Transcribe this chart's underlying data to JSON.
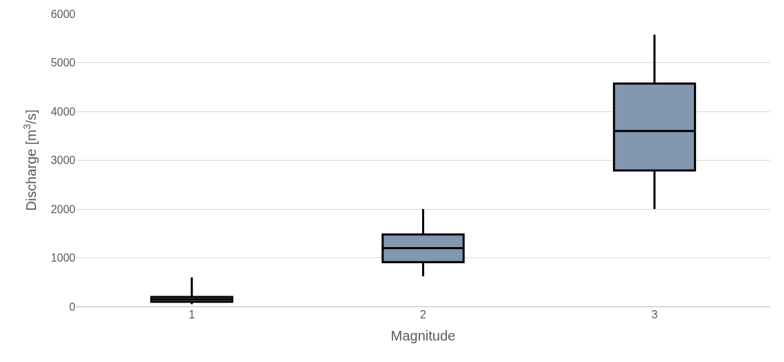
{
  "chart_data": {
    "type": "box",
    "xlabel": "Magnitude",
    "ylabel": "Discharge [m$^{3}$/s]",
    "categories": [
      "1",
      "2",
      "3"
    ],
    "boxes": [
      {
        "low": 50,
        "q1": 100,
        "median": 150,
        "q3": 200,
        "high": 600
      },
      {
        "low": 620,
        "q1": 910,
        "median": 1200,
        "q3": 1480,
        "high": 2000
      },
      {
        "low": 2000,
        "q1": 2790,
        "median": 3600,
        "q3": 4570,
        "high": 5570
      }
    ],
    "color": "#8497b0",
    "ylim": [
      0,
      6000
    ],
    "yticks": [
      0,
      1000,
      2000,
      3000,
      4000,
      5000,
      6000
    ],
    "grid": "y"
  }
}
